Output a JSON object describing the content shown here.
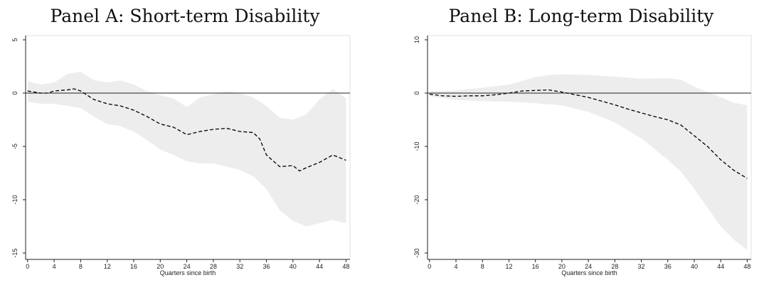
{
  "chart_data": [
    {
      "type": "line",
      "title": "Panel A: Short-term Disability",
      "xlabel": "Quarters since birth",
      "ylabel": "",
      "x_ticks": [
        0,
        4,
        8,
        12,
        16,
        20,
        24,
        28,
        32,
        36,
        40,
        44,
        48
      ],
      "y_ticks": [
        5,
        0,
        -5,
        -10,
        -15
      ],
      "xlim": [
        -0.3,
        48.6
      ],
      "ylim": [
        -15.6,
        5.4
      ],
      "zero_line": true,
      "grid": false,
      "series": [
        {
          "style": "dashed",
          "color": "#000000",
          "x": [
            0,
            2,
            3,
            4,
            6,
            7,
            8,
            10,
            12,
            14,
            16,
            18,
            20,
            22,
            24,
            26,
            28,
            30,
            32,
            34,
            35,
            36,
            38,
            40,
            41,
            42,
            44,
            46,
            48
          ],
          "y": [
            0.2,
            0.0,
            0.0,
            0.2,
            0.3,
            0.4,
            0.2,
            -0.6,
            -1.0,
            -1.2,
            -1.6,
            -2.2,
            -2.9,
            -3.2,
            -3.9,
            -3.6,
            -3.4,
            -3.3,
            -3.6,
            -3.7,
            -4.3,
            -5.8,
            -6.9,
            -6.8,
            -7.3,
            -7.0,
            -6.5,
            -5.8,
            -6.3
          ]
        }
      ],
      "confidence_band": {
        "color": "#ededed",
        "x": [
          0,
          2,
          4,
          6,
          8,
          10,
          12,
          14,
          16,
          18,
          20,
          22,
          24,
          26,
          28,
          30,
          32,
          34,
          36,
          38,
          40,
          42,
          44,
          46,
          48
        ],
        "upper": [
          1.1,
          0.8,
          1.0,
          1.8,
          2.0,
          1.2,
          1.0,
          1.2,
          0.8,
          0.2,
          -0.2,
          -0.5,
          -1.3,
          -0.4,
          -0.1,
          0.2,
          0.0,
          -0.4,
          -1.2,
          -2.3,
          -2.5,
          -2.0,
          -0.6,
          0.4,
          -0.5
        ],
        "lower": [
          -0.8,
          -1.0,
          -1.0,
          -1.2,
          -1.4,
          -2.2,
          -2.9,
          -3.1,
          -3.6,
          -4.4,
          -5.3,
          -5.8,
          -6.4,
          -6.6,
          -6.6,
          -6.9,
          -7.2,
          -7.8,
          -9.0,
          -11.0,
          -12.0,
          -12.5,
          -12.2,
          -11.9,
          -12.2
        ]
      }
    },
    {
      "type": "line",
      "title": "Panel B: Long-term Disability",
      "xlabel": "Quarters since birth",
      "ylabel": "",
      "x_ticks": [
        0,
        4,
        8,
        12,
        16,
        20,
        24,
        28,
        32,
        36,
        40,
        44,
        48
      ],
      "y_ticks": [
        10,
        0,
        -10,
        -20,
        -30
      ],
      "xlim": [
        -0.3,
        48.6
      ],
      "ylim": [
        -31.2,
        10.8
      ],
      "zero_line": true,
      "grid": false,
      "series": [
        {
          "style": "dashed",
          "color": "#000000",
          "x": [
            0,
            2,
            4,
            6,
            8,
            10,
            12,
            14,
            16,
            18,
            20,
            22,
            24,
            26,
            28,
            30,
            32,
            34,
            36,
            38,
            40,
            42,
            44,
            46,
            48
          ],
          "y": [
            -0.2,
            -0.5,
            -0.6,
            -0.5,
            -0.5,
            -0.3,
            0.0,
            0.4,
            0.5,
            0.6,
            0.2,
            -0.3,
            -0.8,
            -1.5,
            -2.2,
            -3.0,
            -3.7,
            -4.4,
            -5.0,
            -6.0,
            -8.0,
            -10.0,
            -12.5,
            -14.5,
            -16.0
          ]
        }
      ],
      "confidence_band": {
        "color": "#ededed",
        "x": [
          0,
          4,
          8,
          12,
          16,
          18,
          20,
          24,
          28,
          32,
          36,
          38,
          40,
          42,
          44,
          46,
          48
        ],
        "upper": [
          0.3,
          0.5,
          1.0,
          1.6,
          3.0,
          3.4,
          3.5,
          3.4,
          3.1,
          2.7,
          2.8,
          2.5,
          1.2,
          0.2,
          -0.8,
          -1.8,
          -2.3
        ],
        "lower": [
          -0.6,
          -1.3,
          -1.5,
          -1.6,
          -1.9,
          -2.1,
          -2.3,
          -3.5,
          -5.5,
          -8.5,
          -12.5,
          -14.8,
          -18.0,
          -21.5,
          -25.0,
          -27.5,
          -29.5
        ]
      }
    }
  ]
}
